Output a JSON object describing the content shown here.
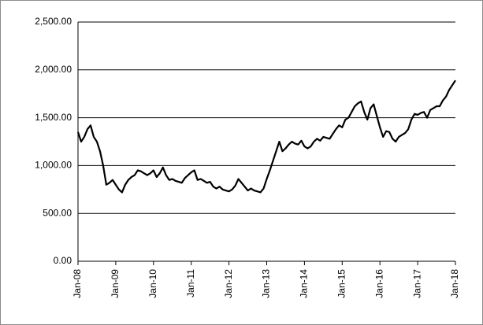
{
  "chart_data": {
    "type": "line",
    "categories": [
      "Jan-08",
      null,
      null,
      null,
      null,
      null,
      null,
      null,
      null,
      null,
      null,
      null,
      "Jan-09",
      null,
      null,
      null,
      null,
      null,
      null,
      null,
      null,
      null,
      null,
      null,
      "Jan-10",
      null,
      null,
      null,
      null,
      null,
      null,
      null,
      null,
      null,
      null,
      null,
      "Jan-11",
      null,
      null,
      null,
      null,
      null,
      null,
      null,
      null,
      null,
      null,
      null,
      "Jan-12",
      null,
      null,
      null,
      null,
      null,
      null,
      null,
      null,
      null,
      null,
      null,
      "Jan-13",
      null,
      null,
      null,
      null,
      null,
      null,
      null,
      null,
      null,
      null,
      null,
      "Jan-14",
      null,
      null,
      null,
      null,
      null,
      null,
      null,
      null,
      null,
      null,
      null,
      "Jan-15",
      null,
      null,
      null,
      null,
      null,
      null,
      null,
      null,
      null,
      null,
      null,
      "Jan-16",
      null,
      null,
      null,
      null,
      null,
      null,
      null,
      null,
      null,
      null,
      null,
      "Jan-17",
      null,
      null,
      null,
      null,
      null,
      null,
      null,
      null,
      null,
      null,
      null,
      "Jan-18"
    ],
    "values": [
      1350,
      1250,
      1300,
      1380,
      1420,
      1300,
      1250,
      1150,
      1000,
      800,
      820,
      850,
      800,
      750,
      720,
      800,
      850,
      880,
      900,
      950,
      940,
      920,
      900,
      920,
      950,
      880,
      920,
      980,
      900,
      850,
      860,
      840,
      830,
      820,
      870,
      900,
      930,
      950,
      850,
      860,
      840,
      820,
      830,
      780,
      760,
      780,
      750,
      740,
      730,
      750,
      790,
      860,
      820,
      780,
      740,
      760,
      740,
      730,
      720,
      760,
      860,
      950,
      1050,
      1150,
      1250,
      1150,
      1180,
      1220,
      1250,
      1230,
      1220,
      1260,
      1200,
      1180,
      1200,
      1250,
      1280,
      1260,
      1300,
      1290,
      1280,
      1330,
      1380,
      1420,
      1400,
      1480,
      1500,
      1560,
      1620,
      1650,
      1670,
      1560,
      1480,
      1600,
      1640,
      1520,
      1400,
      1300,
      1360,
      1350,
      1280,
      1250,
      1300,
      1320,
      1340,
      1380,
      1480,
      1540,
      1530,
      1550,
      1560,
      1500,
      1580,
      1600,
      1620,
      1620,
      1680,
      1720,
      1790,
      1840,
      1890
    ],
    "color": "#000000",
    "ylim": [
      0,
      2500
    ],
    "yticks": [
      {
        "value": 0,
        "label": "0.00"
      },
      {
        "value": 500,
        "label": "500.00"
      },
      {
        "value": 1000,
        "label": "1,000.00"
      },
      {
        "value": 1500,
        "label": "1,500.00"
      },
      {
        "value": 2000,
        "label": "2,000.00"
      },
      {
        "value": 2500,
        "label": "2,500.00"
      }
    ],
    "grid": true
  }
}
